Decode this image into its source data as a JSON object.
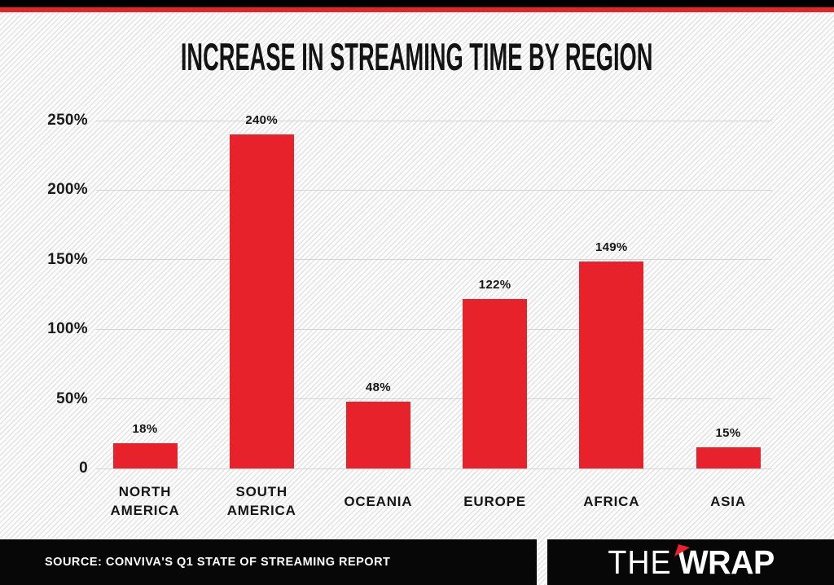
{
  "header": {
    "title": "INCREASE IN STREAMING TIME BY REGION"
  },
  "chart_data": {
    "type": "bar",
    "title": "INCREASE IN STREAMING TIME BY REGION",
    "categories": [
      [
        "NORTH",
        "AMERICA"
      ],
      [
        "SOUTH",
        "AMERICA"
      ],
      [
        "OCEANIA"
      ],
      [
        "EUROPE"
      ],
      [
        "AFRICA"
      ],
      [
        "ASIA"
      ]
    ],
    "values": [
      18,
      240,
      48,
      122,
      149,
      15
    ],
    "data_labels": [
      "18%",
      "240%",
      "48%",
      "122%",
      "149%",
      "15%"
    ],
    "y_ticks": [
      {
        "label": "250%",
        "value": 250
      },
      {
        "label": "200%",
        "value": 200
      },
      {
        "label": "150%",
        "value": 150
      },
      {
        "label": "100%",
        "value": 100
      },
      {
        "label": "50%",
        "value": 50
      },
      {
        "label": "0",
        "value": 0
      }
    ],
    "ylim": [
      0,
      250
    ],
    "xlabel": "",
    "ylabel": "",
    "grid": true,
    "legend": false,
    "bar_color": "#e8222b"
  },
  "footer": {
    "source": "SOURCE: CONVIVA'S Q1 STATE OF STREAMING REPORT",
    "logo": {
      "the": "THE",
      "wrap": "WRAP"
    }
  },
  "colors": {
    "accent_red": "#e8222b",
    "band_black": "#000000",
    "footer_black": "#070707",
    "gridline": "#d4d4d4",
    "text": "#161616"
  }
}
